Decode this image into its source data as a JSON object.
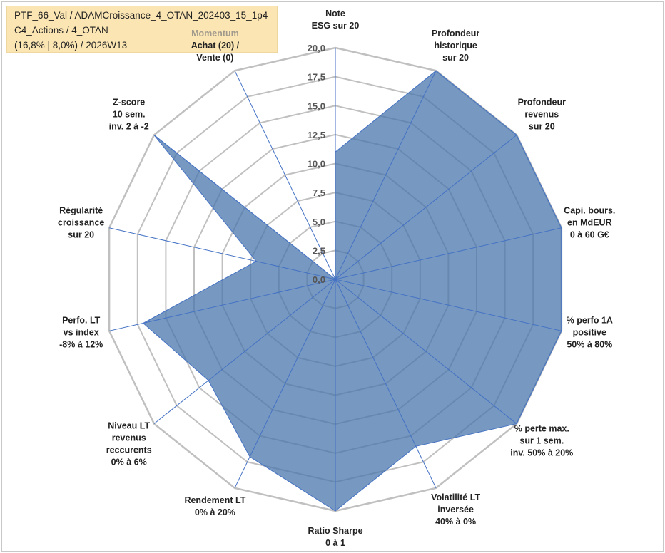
{
  "info": {
    "line1": "PTF_66_Val / ADAMCroissance_4_OTAN_202403_15_1p4",
    "line2": "C4_Actions / 4_OTAN",
    "line3": "(16,8% | 8,0%) / 2026W13"
  },
  "colors": {
    "fill": "#4a76ab",
    "line": "#4472c4",
    "grid": "#c0c0c0",
    "infobox": "#fbe5b3"
  },
  "chart_data": {
    "type": "radar",
    "title": "",
    "rmin": 0,
    "rmax": 20,
    "tick_step": 2.5,
    "tick_labels": [
      "0,0",
      "2,5",
      "5,0",
      "7,5",
      "10,0",
      "12,5",
      "15,0",
      "17,5",
      "20,0"
    ],
    "axes": [
      {
        "label": [
          "Note",
          "ESG sur 20"
        ],
        "value": 11
      },
      {
        "label": [
          "Profondeur",
          "historique",
          "sur 20"
        ],
        "value": 20
      },
      {
        "label": [
          "Profondeur",
          "revenus",
          "sur 20"
        ],
        "value": 20
      },
      {
        "label": [
          "Capi. bours.",
          "en MdEUR",
          "0 à 60 G€"
        ],
        "value": 20
      },
      {
        "label": [
          "% perfo 1A",
          "positive",
          "50% à 80%"
        ],
        "value": 20
      },
      {
        "label": [
          "% perte max.",
          "sur 1 sem.",
          "inv. 50% à 20%"
        ],
        "value": 20
      },
      {
        "label": [
          "Volatilité LT",
          "inversée",
          "40% à 0%"
        ],
        "value": 16
      },
      {
        "label": [
          "Ratio Sharpe",
          "0 à 1"
        ],
        "value": 20
      },
      {
        "label": [
          "Rendement LT",
          "0% à 20%"
        ],
        "value": 17
      },
      {
        "label": [
          "Niveau LT",
          "revenus",
          "reccurents",
          "0% à 6%"
        ],
        "value": 14
      },
      {
        "label": [
          "Perfo. LT",
          "vs index",
          "-8% à 12%"
        ],
        "value": 17
      },
      {
        "label": [
          "Régularité",
          "croissance",
          "sur 20"
        ],
        "value": 7
      },
      {
        "label": [
          "Z-score",
          "10 sem.",
          "inv. 2 à -2"
        ],
        "value": 20
      },
      {
        "label": [
          "Momentum",
          "Achat (20) /",
          "Vente (0)"
        ],
        "value": 0
      }
    ]
  }
}
